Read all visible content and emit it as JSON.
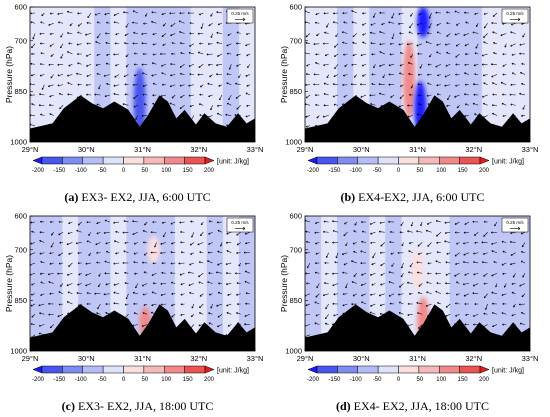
{
  "chart_data": [
    {
      "type": "heatmap",
      "panel_letter": "(a)",
      "caption": "EX3- EX2, JJA, 6:00 UTC",
      "ylabel": "Pressure (hPa)",
      "x_ticks": [
        "29°N",
        "30°N",
        "31°N",
        "32°N",
        "33°N"
      ],
      "y_ticks": [
        "600",
        "700",
        "850",
        "1000"
      ],
      "xlim": [
        29,
        33
      ],
      "ylim": [
        1000,
        600
      ],
      "ref_vector": "0.25 m/s",
      "colorbar_ticks": [
        "-200",
        "-150",
        "-100",
        "-50",
        "0",
        "50",
        "100",
        "150",
        "200"
      ],
      "colorbar_unit": "[unit: J/kg]",
      "features": [
        {
          "lat": 30.95,
          "p_top": 780,
          "p_bottom": 990,
          "value": -120
        }
      ]
    },
    {
      "type": "heatmap",
      "panel_letter": "(b)",
      "caption": "EX4-EX2, JJA, 6:00 UTC",
      "ylabel": "Pressure (hPa)",
      "x_ticks": [
        "29°N",
        "30°N",
        "31°N",
        "32°N",
        "33°N"
      ],
      "y_ticks": [
        "600",
        "700",
        "850",
        "1000"
      ],
      "xlim": [
        29,
        33
      ],
      "ylim": [
        1000,
        600
      ],
      "ref_vector": "0.25 m/s",
      "colorbar_ticks": [
        "-200",
        "-150",
        "-100",
        "-50",
        "0",
        "50",
        "100",
        "150",
        "200"
      ],
      "colorbar_unit": "[unit: J/kg]",
      "features": [
        {
          "lat": 30.85,
          "p_top": 700,
          "p_bottom": 930,
          "value": 180
        },
        {
          "lat": 31.1,
          "p_top": 600,
          "p_bottom": 690,
          "value": -180
        },
        {
          "lat": 31.05,
          "p_top": 820,
          "p_bottom": 990,
          "value": -170
        }
      ]
    },
    {
      "type": "heatmap",
      "panel_letter": "(c)",
      "caption": "EX3- EX2, JJA, 18:00 UTC",
      "ylabel": "Pressure (hPa)",
      "x_ticks": [
        "29°N",
        "30°N",
        "31°N",
        "32°N",
        "33°N"
      ],
      "y_ticks": [
        "600",
        "700",
        "850",
        "1000"
      ],
      "xlim": [
        29,
        33
      ],
      "ylim": [
        1000,
        600
      ],
      "ref_vector": "0.25 m/s",
      "colorbar_ticks": [
        "-200",
        "-150",
        "-100",
        "-50",
        "0",
        "50",
        "100",
        "150",
        "200"
      ],
      "colorbar_unit": "[unit: J/kg]",
      "features": [
        {
          "lat": 31.2,
          "p_top": 660,
          "p_bottom": 740,
          "value": 60
        },
        {
          "lat": 31.05,
          "p_top": 870,
          "p_bottom": 960,
          "value": 170
        }
      ]
    },
    {
      "type": "heatmap",
      "panel_letter": "(d)",
      "caption": "EX4- EX2, JJA, 18:00 UTC",
      "ylabel": "Pressure (hPa)",
      "x_ticks": [
        "29°N",
        "30°N",
        "31°N",
        "32°N",
        "33°N"
      ],
      "y_ticks": [
        "600",
        "700",
        "850",
        "1000"
      ],
      "xlim": [
        29,
        33
      ],
      "ylim": [
        1000,
        600
      ],
      "ref_vector": "0.25 m/s",
      "colorbar_ticks": [
        "-200",
        "-150",
        "-100",
        "-50",
        "0",
        "50",
        "100",
        "150",
        "200"
      ],
      "colorbar_unit": "[unit: J/kg]",
      "features": [
        {
          "lat": 31.1,
          "p_top": 840,
          "p_bottom": 980,
          "value": 190
        },
        {
          "lat": 31.0,
          "p_top": 700,
          "p_bottom": 820,
          "value": 60
        }
      ]
    }
  ],
  "colors": {
    "terrain": "#000000",
    "neg": [
      "#1a1aff",
      "#4a55ee",
      "#7f8cf0",
      "#b5bdf6",
      "#dfe2fb"
    ],
    "pos": [
      "#fbdfdf",
      "#f6b9b9",
      "#f08a8a",
      "#ec5353",
      "#e51c1c"
    ]
  }
}
